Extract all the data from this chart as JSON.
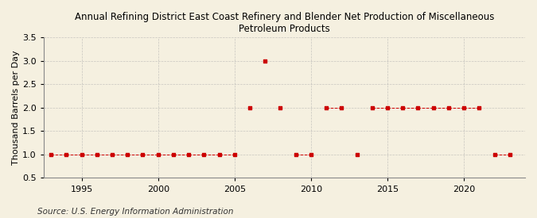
{
  "title": "Annual Refining District East Coast Refinery and Blender Net Production of Miscellaneous\nPetroleum Products",
  "ylabel": "Thousand Barrels per Day",
  "source": "Source: U.S. Energy Information Administration",
  "background_color": "#F5F0E0",
  "years": [
    1993,
    1994,
    1995,
    1996,
    1997,
    1998,
    1999,
    2000,
    2001,
    2002,
    2003,
    2004,
    2005,
    2006,
    2007,
    2008,
    2009,
    2010,
    2011,
    2012,
    2013,
    2014,
    2015,
    2016,
    2017,
    2018,
    2019,
    2020,
    2021,
    2022,
    2023
  ],
  "values": [
    1.0,
    1.0,
    1.0,
    1.0,
    1.0,
    1.0,
    1.0,
    1.0,
    1.0,
    1.0,
    1.0,
    1.0,
    1.0,
    2.0,
    3.0,
    2.0,
    1.0,
    1.0,
    2.0,
    2.0,
    1.0,
    2.0,
    2.0,
    2.0,
    2.0,
    2.0,
    2.0,
    2.0,
    2.0,
    1.0,
    1.0
  ],
  "marker_color": "#CC0000",
  "line_color": "#CC0000",
  "marker": "s",
  "marker_size": 3.5,
  "ylim": [
    0.5,
    3.5
  ],
  "yticks": [
    0.5,
    1.0,
    1.5,
    2.0,
    2.5,
    3.0,
    3.5
  ],
  "xlim": [
    1992.5,
    2024
  ],
  "xticks": [
    1995,
    2000,
    2005,
    2010,
    2015,
    2020
  ],
  "grid_color": "#AAAAAA",
  "title_fontsize": 8.5,
  "axis_fontsize": 8,
  "source_fontsize": 7.5
}
